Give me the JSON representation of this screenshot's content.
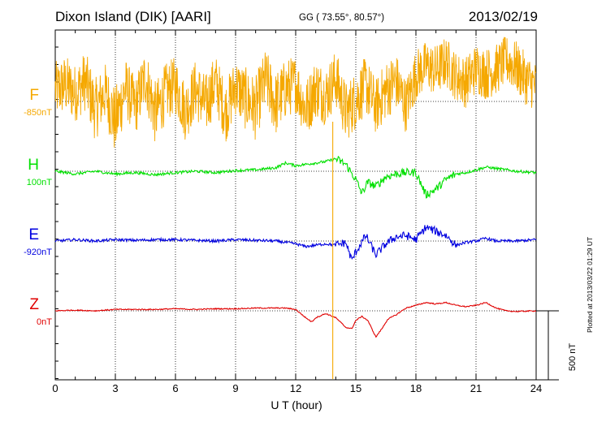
{
  "header": {
    "station": "Dixon Island (DIK)  [AARI]",
    "coords": "GG ( 73.55°,  80.57°)",
    "date": "2013/02/19"
  },
  "footer": {
    "plotted": "Plotted at 2013/03/22 01:29 UT",
    "scale_bar": "500 nT"
  },
  "chart_data": {
    "type": "line",
    "xlabel": "U T (hour)",
    "ylabel": "",
    "xlim": [
      0,
      24
    ],
    "xticks": [
      "0",
      "3",
      "6",
      "9",
      "12",
      "15",
      "18",
      "21",
      "24"
    ],
    "scale_bar_nT": 500,
    "grid": "dotted vertical every 3 h; dotted baseline per channel",
    "series": [
      {
        "name": "F",
        "baseline": "-850nT",
        "color": "#f5a800",
        "x": [
          0,
          0.5,
          1,
          1.5,
          2,
          2.5,
          3,
          3.5,
          4,
          4.5,
          5,
          5.5,
          6,
          6.5,
          7,
          7.5,
          8,
          8.5,
          9,
          9.5,
          10,
          10.5,
          11,
          11.5,
          12,
          12.5,
          13,
          13.5,
          14,
          14.5,
          15,
          15.5,
          16,
          16.5,
          17,
          17.5,
          18,
          18.5,
          19,
          19.5,
          20,
          20.5,
          21,
          21.5,
          22,
          22.5,
          23,
          23.5,
          24
        ],
        "y": [
          80,
          120,
          60,
          150,
          -60,
          70,
          -150,
          100,
          -40,
          180,
          -90,
          60,
          120,
          -70,
          90,
          -30,
          140,
          -80,
          110,
          20,
          -50,
          160,
          -20,
          90,
          130,
          -60,
          100,
          40,
          170,
          -80,
          10,
          120,
          -40,
          80,
          150,
          -30,
          190,
          260,
          220,
          290,
          180,
          140,
          240,
          200,
          230,
          300,
          250,
          160,
          110
        ],
        "amp": [
          420,
          440,
          420,
          440,
          460,
          420,
          520,
          440,
          420,
          440,
          470,
          430,
          420,
          440,
          430,
          450,
          420,
          440,
          430,
          460,
          470,
          450,
          470,
          440,
          420,
          430,
          440,
          430,
          420,
          440,
          430,
          420,
          410,
          430,
          420,
          400,
          380,
          360,
          380,
          370,
          360,
          380,
          370,
          380,
          370,
          360,
          380,
          380,
          360
        ]
      },
      {
        "name": "H",
        "baseline": "100nT",
        "color": "#00e000",
        "x": [
          0,
          1,
          2,
          3,
          4,
          5,
          6,
          7,
          8,
          9,
          10,
          11,
          11.5,
          12,
          12.5,
          13,
          13.5,
          14,
          14.5,
          15,
          15.3,
          15.6,
          16,
          16.5,
          17,
          17.5,
          18,
          18.5,
          19,
          19.5,
          20,
          20.5,
          21,
          21.5,
          22,
          22.5,
          23,
          24
        ],
        "y": [
          0,
          -20,
          0,
          -20,
          -10,
          -25,
          -10,
          0,
          -10,
          5,
          10,
          25,
          60,
          40,
          50,
          60,
          70,
          90,
          50,
          -60,
          -160,
          -80,
          -110,
          -40,
          -20,
          -10,
          -10,
          -170,
          -130,
          -60,
          -20,
          -10,
          10,
          30,
          20,
          10,
          0,
          -10
        ]
      },
      {
        "name": "E",
        "baseline": "-920nT",
        "color": "#0000e0",
        "x": [
          0,
          1,
          2,
          3,
          4,
          5,
          6,
          7,
          8,
          9,
          10,
          11,
          12,
          12.5,
          13,
          13.5,
          14,
          14.5,
          14.8,
          15,
          15.5,
          16,
          16.5,
          17,
          17.5,
          18,
          18.5,
          19,
          19.5,
          20,
          20.5,
          21,
          21.5,
          22,
          23,
          24
        ],
        "y": [
          0,
          10,
          0,
          10,
          5,
          10,
          10,
          5,
          0,
          10,
          5,
          0,
          -20,
          -40,
          -30,
          -20,
          -30,
          -10,
          -140,
          -80,
          40,
          -100,
          -20,
          30,
          40,
          10,
          100,
          70,
          40,
          -30,
          -10,
          0,
          20,
          0,
          0,
          10
        ]
      },
      {
        "name": "Z",
        "baseline": "0nT",
        "color": "#e00000",
        "x": [
          0,
          1,
          2,
          3,
          4,
          5,
          6,
          7,
          8,
          9,
          10,
          11,
          11.5,
          12,
          12.5,
          12.8,
          13,
          13.5,
          14,
          14.5,
          14.8,
          15,
          15.3,
          15.6,
          16,
          16.3,
          16.6,
          17,
          17.5,
          18,
          18.5,
          19,
          19.5,
          20,
          20.5,
          21,
          21.5,
          22,
          22.5,
          23,
          24
        ],
        "y": [
          0,
          5,
          0,
          10,
          10,
          10,
          15,
          10,
          15,
          15,
          20,
          20,
          20,
          10,
          -50,
          -80,
          -50,
          -20,
          -50,
          -120,
          -130,
          -70,
          -40,
          -70,
          -190,
          -130,
          -60,
          -30,
          20,
          40,
          60,
          50,
          60,
          40,
          30,
          40,
          60,
          20,
          0,
          -5,
          0
        ]
      }
    ]
  }
}
